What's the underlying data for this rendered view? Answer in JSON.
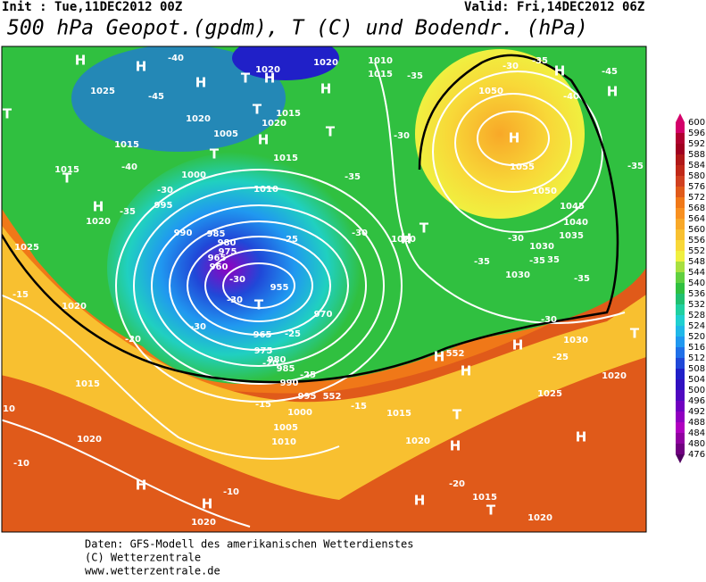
{
  "header": {
    "init": "Init : Tue,11DEC2012 00Z",
    "valid": "Valid: Fri,14DEC2012 06Z",
    "title": "500 hPa Geopot.(gpdm), T (C) und Bodendr. (hPa)"
  },
  "colorbar": {
    "levels": [
      "600",
      "596",
      "592",
      "588",
      "584",
      "580",
      "576",
      "572",
      "568",
      "564",
      "560",
      "556",
      "552",
      "548",
      "544",
      "540",
      "536",
      "532",
      "528",
      "524",
      "520",
      "516",
      "512",
      "508",
      "504",
      "500",
      "496",
      "492",
      "488",
      "484",
      "480",
      "476"
    ],
    "colors": [
      "#d4006a",
      "#b00030",
      "#a00020",
      "#b01818",
      "#c02818",
      "#d04020",
      "#e05a1a",
      "#f07818",
      "#f89020",
      "#f8a828",
      "#f8c030",
      "#f8d838",
      "#f0f040",
      "#a8e040",
      "#60d040",
      "#30c040",
      "#20c070",
      "#20d0a0",
      "#20d0d0",
      "#20b8e8",
      "#2098f0",
      "#2070e8",
      "#2048d8",
      "#2020c8",
      "#3010c0",
      "#5008c0",
      "#7000c0",
      "#9000c0",
      "#b000c0",
      "#9000a0",
      "#700080",
      "#500060"
    ]
  },
  "map_labels": [
    "H",
    "H",
    "H",
    "T",
    "H",
    "1020",
    "1020",
    "H",
    "T",
    "1015",
    "1010",
    "-40",
    "-45",
    "1025",
    "1020",
    "1005",
    "H",
    "1020",
    "1015",
    "T",
    "T",
    "1015",
    "1015",
    "T",
    "1015",
    "T",
    "-40",
    "1010",
    "1000",
    "-30",
    "995",
    "H",
    "1020",
    "-35",
    "990",
    "985",
    "980",
    "975",
    "965",
    "960",
    "955",
    "-30",
    "-30",
    "T",
    "970",
    "-30",
    "965",
    "975",
    "980",
    "985",
    "990",
    "995",
    "1000",
    "1005",
    "1010",
    "-25",
    "-25",
    "-20",
    "-15",
    "1020",
    "1025",
    "1015",
    "10",
    "1020",
    "-10",
    "H",
    "H",
    "-10",
    "1020",
    "-20",
    "-25",
    "-30",
    "-30",
    "-35",
    "-35",
    "1020",
    "T",
    "H",
    "-35",
    "-30",
    "1030",
    "-35",
    "-30",
    "H",
    "1030",
    "T",
    "1020",
    "-25",
    "1025",
    "H",
    "H",
    "1015",
    "T",
    "1020",
    "H",
    "H",
    "-20",
    "H",
    "1015",
    "T",
    "1020",
    "-15",
    "-15",
    "H",
    "1055",
    "1050",
    "1050",
    "1045",
    "1040",
    "1035",
    "1030",
    "-35",
    "35",
    "-30",
    "-35",
    "H",
    "-40",
    "-45",
    "H",
    "-35",
    "552",
    "552"
  ],
  "footer": [
    "Daten: GFS-Modell des amerikanischen Wetterdienstes",
    "(C) Wetterzentrale",
    "www.wetterzentrale.de"
  ]
}
